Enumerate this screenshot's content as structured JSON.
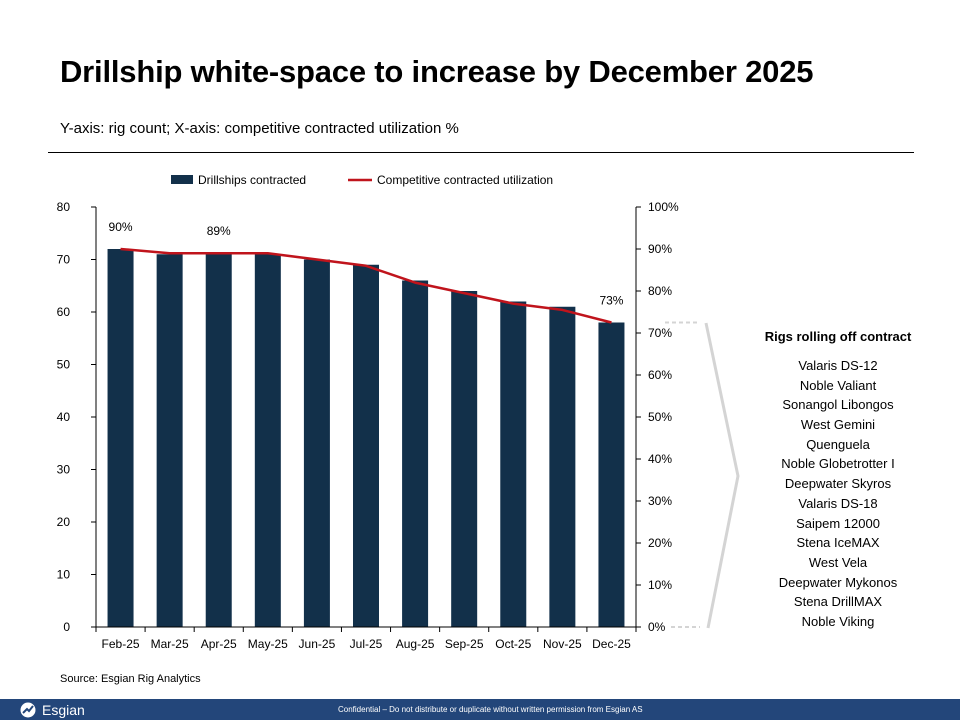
{
  "page": {
    "title": "Drillship white-space to increase by December 2025",
    "subtitle": "Y-axis: rig count; X-axis: competitive contracted utilization %",
    "source": "Source: Esgian Rig Analytics",
    "footer_logo": "Esgian",
    "footer_confidential": "Confidential – Do not distribute or duplicate without written permission from Esgian AS"
  },
  "side_panel": {
    "title": "Rigs rolling off contract",
    "rigs": [
      "Valaris DS-12",
      "Noble Valiant",
      "Sonangol Libongos",
      "West Gemini",
      "Quenguela",
      "Noble Globetrotter I",
      "Deepwater Skyros",
      "Valaris DS-18",
      "Saipem 12000",
      "Stena IceMAX",
      "West Vela",
      "Deepwater Mykonos",
      "Stena DrillMAX",
      "Noble Viking"
    ]
  },
  "chart_data": {
    "type": "bar",
    "categories": [
      "Feb-25",
      "Mar-25",
      "Apr-25",
      "May-25",
      "Jun-25",
      "Jul-25",
      "Aug-25",
      "Sep-25",
      "Oct-25",
      "Nov-25",
      "Dec-25"
    ],
    "series": [
      {
        "name": "Drillships contracted",
        "type": "bar",
        "axis": "left",
        "color": "#12304a",
        "values": [
          72,
          71,
          71,
          71,
          70,
          69,
          66,
          64,
          62,
          61,
          58
        ]
      },
      {
        "name": "Competitive contracted utilization",
        "type": "line",
        "axis": "right",
        "color": "#c0141c",
        "values": [
          90,
          89,
          89,
          89,
          87.5,
          86,
          82,
          79.5,
          77,
          75.5,
          72.5
        ]
      }
    ],
    "data_labels": [
      {
        "series": 1,
        "index": 0,
        "text": "90%"
      },
      {
        "series": 1,
        "index": 2,
        "text": "89%"
      },
      {
        "series": 1,
        "index": 10,
        "text": "73%"
      }
    ],
    "y_left": {
      "min": 0,
      "max": 80,
      "ticks": [
        "0",
        "10",
        "20",
        "30",
        "40",
        "50",
        "60",
        "70",
        "80"
      ]
    },
    "y_right": {
      "min": 0,
      "max": 100,
      "ticks": [
        "0%",
        "10%",
        "20%",
        "30%",
        "40%",
        "50%",
        "60%",
        "70%",
        "80%",
        "90%",
        "100%"
      ]
    },
    "legend_position": "top",
    "grid": false
  },
  "colors": {
    "bar": "#12304a",
    "line": "#c0141c",
    "footer": "#23467a",
    "bracket": "#d4d4d4"
  }
}
